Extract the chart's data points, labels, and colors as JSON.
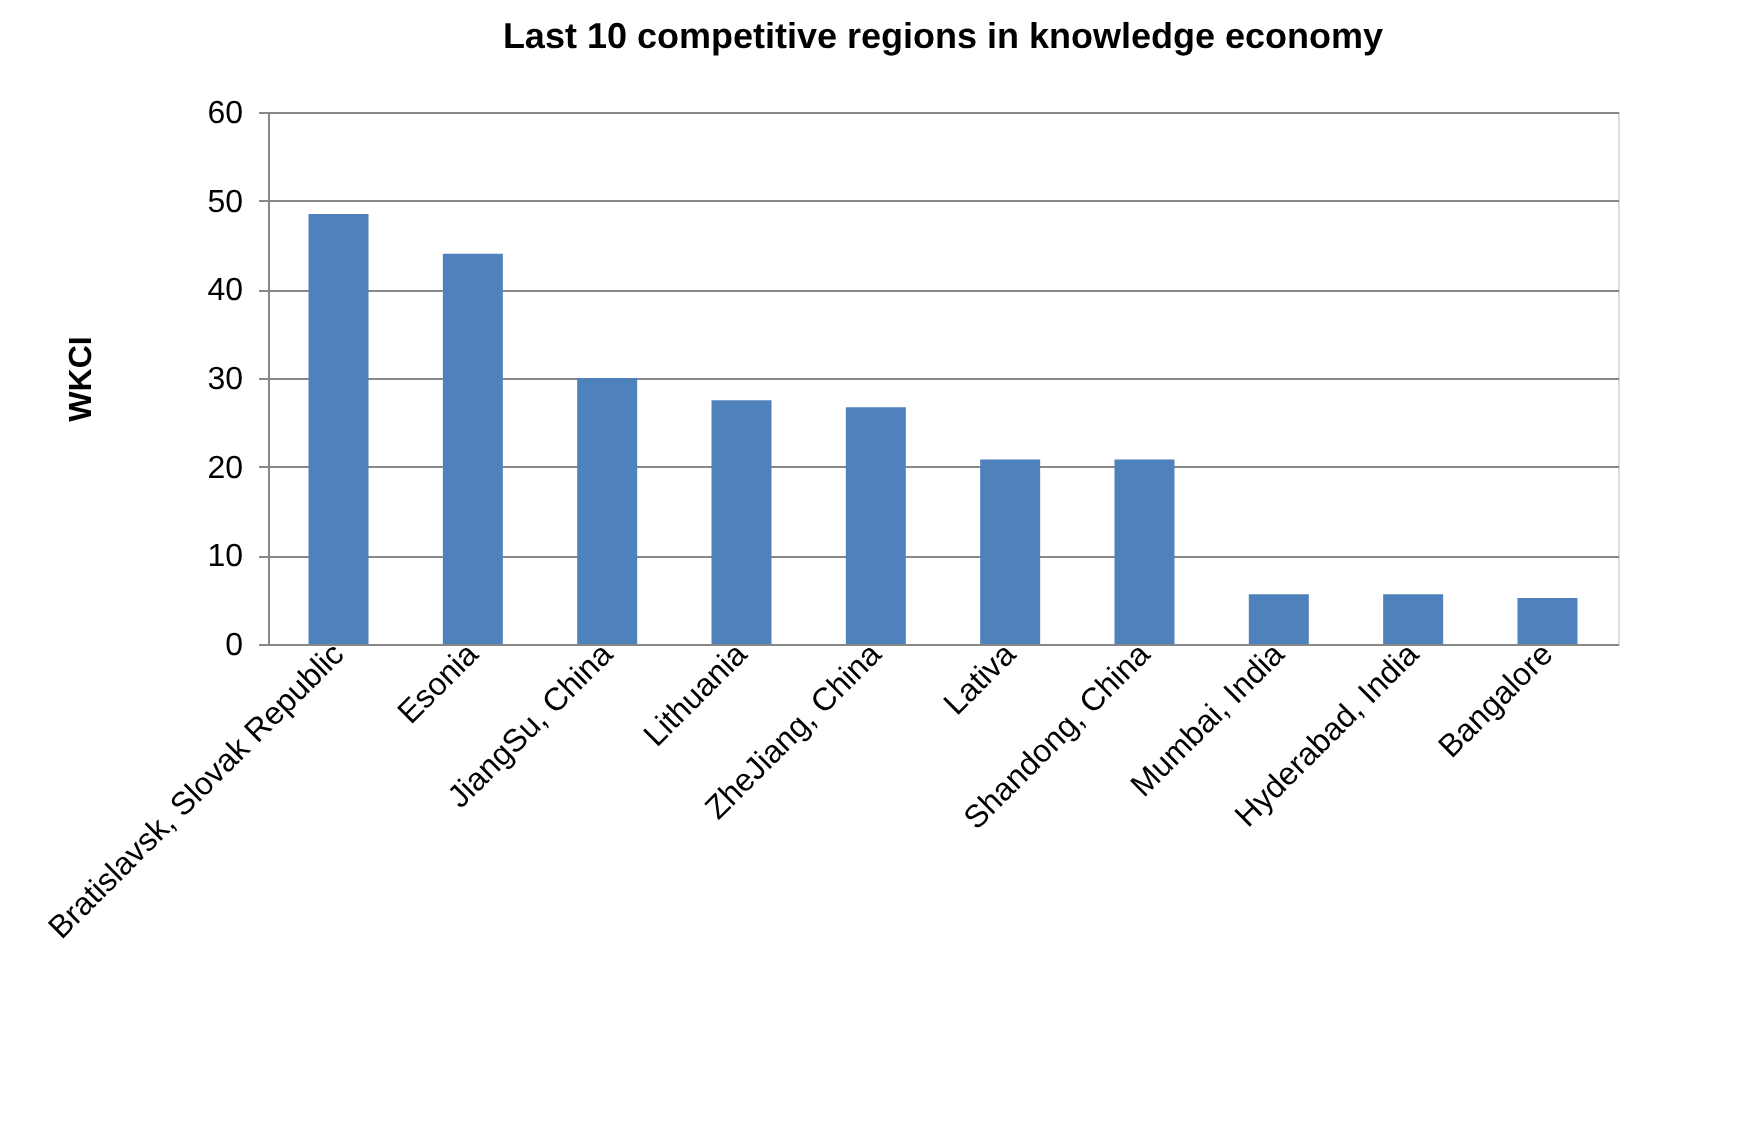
{
  "chart_data": {
    "type": "bar",
    "title": "Last 10  competitive regions in knowledge economy",
    "ylabel": "WKCI",
    "categories": [
      "Bratislavsk, Slovak Republic",
      "Esonia",
      "JiangSu, China",
      "Lithuania",
      "ZheJiang, China",
      "Lativa",
      "Shandong, China",
      "Mumbai, India",
      "Hyderabad, India",
      "Bangalore"
    ],
    "values": [
      48.5,
      44,
      30,
      27.5,
      26.7,
      20.8,
      20.8,
      5.6,
      5.6,
      5.2
    ],
    "color": "#4f81bd",
    "ylim": [
      0,
      60
    ],
    "yticks": [
      0,
      10,
      20,
      30,
      40,
      50,
      60
    ],
    "grid": "y"
  }
}
